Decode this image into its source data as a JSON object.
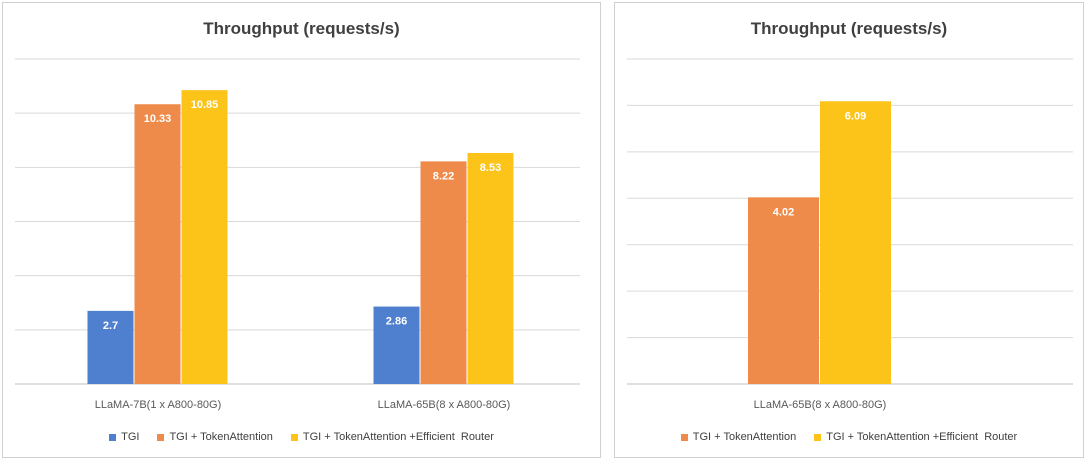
{
  "chart_data": [
    {
      "type": "bar",
      "title": "Throughput (requests/s)",
      "categories": [
        "LLaMA-7B(1 x A800-80G)",
        "LLaMA-65B(8 x A800-80G)"
      ],
      "series": [
        {
          "name": "TGI",
          "values": [
            2.7,
            2.86
          ],
          "color": "#4f7fcf"
        },
        {
          "name": "TGI + TokenAttention",
          "values": [
            10.33,
            8.22
          ],
          "color": "#ee8a4a"
        },
        {
          "name": "TGI + TokenAttention +Efficient  Router",
          "values": [
            10.85,
            8.53
          ],
          "color": "#fcc419"
        }
      ],
      "ylim": [
        0,
        12
      ],
      "gridlines": [
        2,
        4,
        6,
        8,
        10,
        12
      ],
      "grid": true,
      "legend": "bottom"
    },
    {
      "type": "bar",
      "title": "Throughput (requests/s)",
      "categories": [
        "LLaMA-65B(8 x A800-80G)"
      ],
      "series": [
        {
          "name": "TGI + TokenAttention",
          "values": [
            4.02
          ],
          "color": "#ee8a4a"
        },
        {
          "name": "TGI + TokenAttention +Efficient  Router",
          "values": [
            6.09
          ],
          "color": "#fcc419"
        }
      ],
      "ylim": [
        0,
        7
      ],
      "gridlines": [
        1,
        2,
        3,
        4,
        5,
        6,
        7
      ],
      "grid": true,
      "legend": "bottom"
    }
  ]
}
